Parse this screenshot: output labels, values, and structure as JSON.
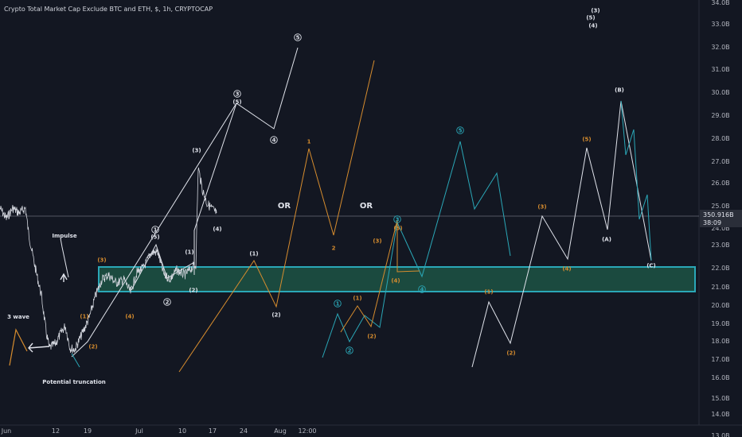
{
  "chart_data": {
    "type": "line",
    "title": "Crypto Total Market Cap Exclude BTC and ETH, $, 1h, CRYPTOCAP",
    "y_ticks": [
      "34.0B",
      "33.0B",
      "32.0B",
      "31.0B",
      "30.0B",
      "29.0B",
      "28.0B",
      "27.0B",
      "26.0B",
      "25.0B",
      "24.0B",
      "23.0B",
      "22.0B",
      "21.0B",
      "20.0B",
      "19.0B",
      "18.0B",
      "17.0B",
      "16.0B",
      "15.0B",
      "14.0B",
      "13.0B"
    ],
    "x_ticks": [
      "Jun",
      "12",
      "19",
      "Jul",
      "10",
      "17",
      "24",
      "Aug",
      "12:00"
    ],
    "price_label": {
      "value": "350.916B",
      "countdown": "38:09"
    },
    "annotations": [
      "OR",
      "OR",
      "Impulse",
      "3 wave",
      "Potential truncation"
    ],
    "wave_labels": {
      "white": [
        "5",
        "3",
        "(5)",
        "4",
        "(3)",
        "1",
        "(5)",
        "(1)",
        "2",
        "(2)",
        "(4)",
        "(1)",
        "(2)",
        "(B)",
        "(A)",
        "(C)",
        "(3)",
        "(5)",
        "(4)"
      ],
      "orange": [
        "(3)",
        "(1)",
        "(2)",
        "(4)",
        "1",
        "2",
        "(3)",
        "(5)",
        "(4)",
        "(1)",
        "(2)",
        "(3)",
        "(4)",
        "(5)",
        "(1)",
        "(2)"
      ],
      "teal": [
        "3",
        "1",
        "2",
        "4",
        "5"
      ]
    },
    "colors": {
      "background": "#131722",
      "white": "#e0e3eb",
      "orange": "#d68c2e",
      "teal": "#2aa7b7",
      "box": "#1a8f7a"
    }
  }
}
